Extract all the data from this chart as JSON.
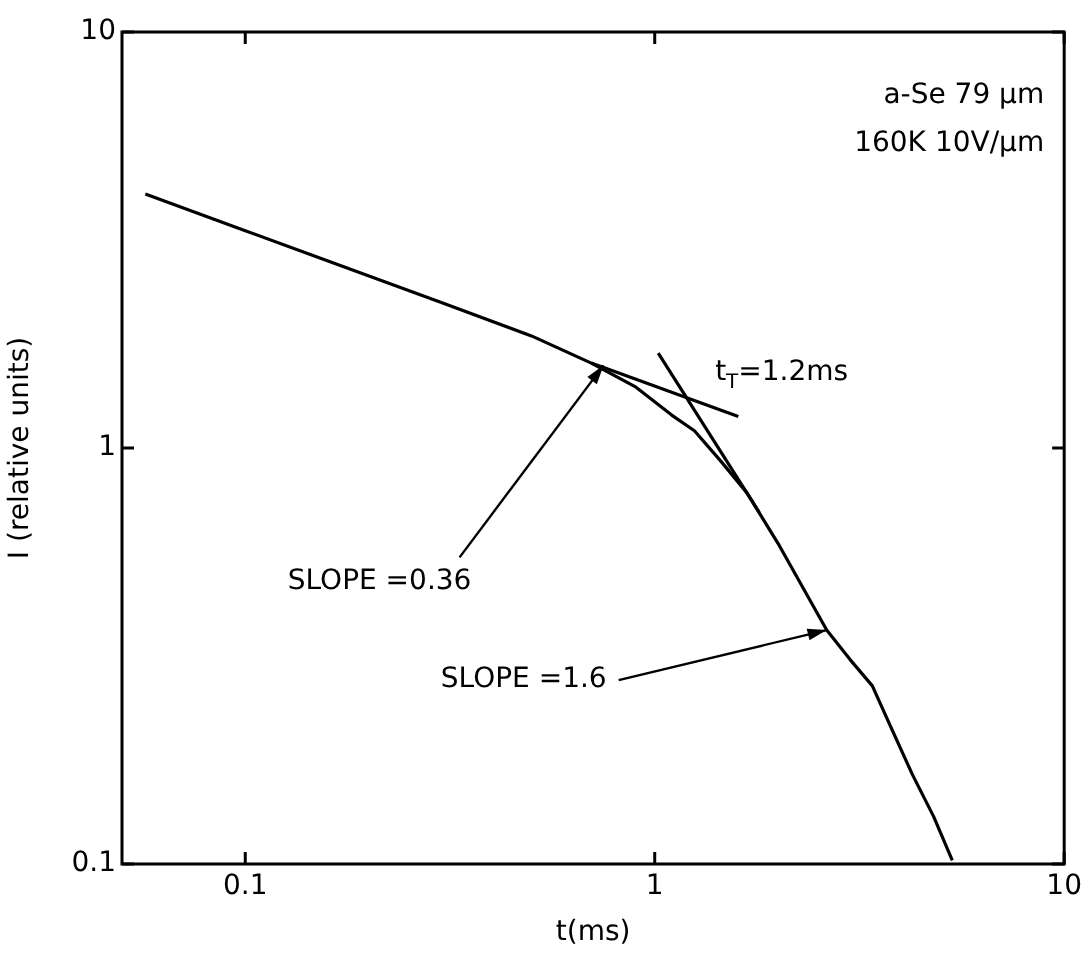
{
  "chart_data": {
    "type": "line",
    "xlabel": "t(ms)",
    "ylabel": "I (relative units)",
    "log": "xy",
    "marker": "none",
    "line_style": "solid",
    "xlim": [
      0.05,
      10
    ],
    "ylim": [
      0.1,
      10
    ],
    "xticks": [
      0.1,
      1,
      10
    ],
    "yticks": [
      0.1,
      1,
      10
    ],
    "series": [
      {
        "color": "#000000",
        "x": [
          0.057,
          0.1,
          0.3,
          0.5,
          0.7,
          0.9,
          1.1,
          1.25,
          1.45,
          1.68,
          2.0,
          2.63,
          3.0,
          3.4,
          3.8,
          4.26,
          4.8,
          5.33
        ],
        "values": [
          4.08,
          3.33,
          2.24,
          1.86,
          1.6,
          1.4,
          1.2,
          1.1,
          0.93,
          0.78,
          0.59,
          0.365,
          0.31,
          0.268,
          0.21,
          0.164,
          0.13,
          0.102
        ]
      },
      {
        "color": "#000000",
        "x": [
          0.7,
          1.6
        ],
        "values": [
          1.6,
          1.19
        ]
      },
      {
        "color": "#000000",
        "x": [
          1.02,
          1.8
        ],
        "values": [
          1.69,
          0.7
        ]
      }
    ],
    "annotations": [
      "a-Se 79 μm",
      "160K 10V/μm",
      {
        "text": "SLOPE =0.36",
        "x": 0.75,
        "y": 1.58
      },
      {
        "text": "SLOPE =1.6",
        "x": 2.63,
        "y": 0.365
      },
      {
        "text": "t$_{T}$=1.2ms",
        "x": 1.2,
        "y": 1.3
      }
    ]
  }
}
